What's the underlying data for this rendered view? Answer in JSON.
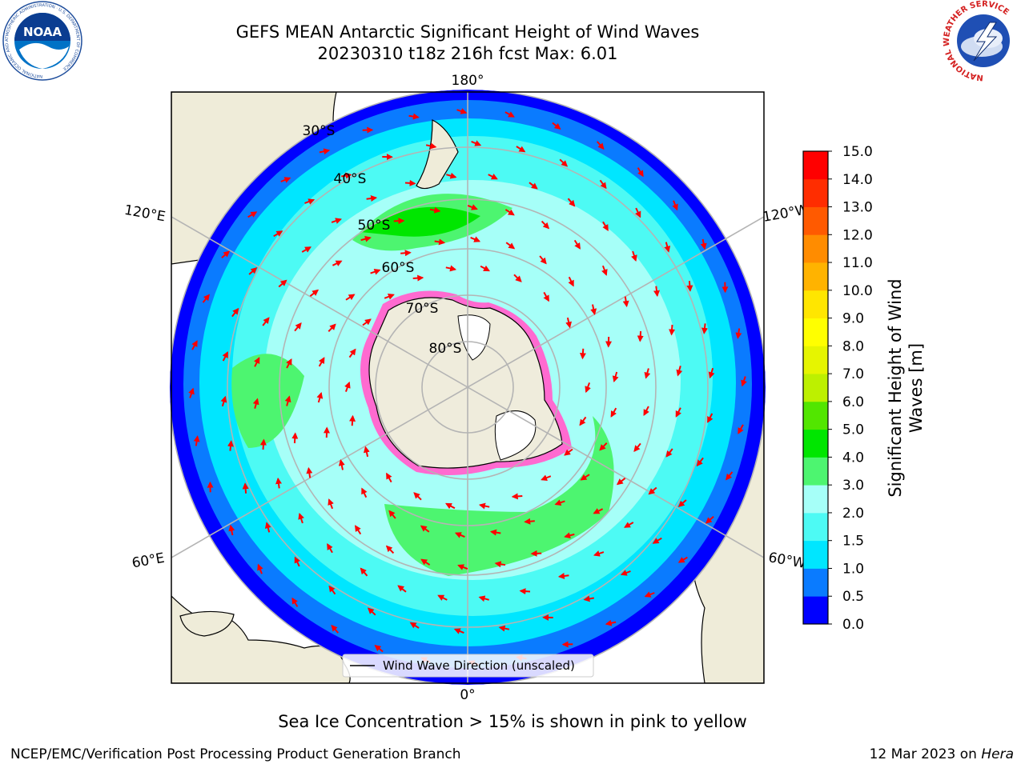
{
  "header": {
    "title_line1": "GEFS MEAN Antarctic Significant Height of Wind Waves",
    "title_line2": "20230310 t18z 216h fcst   Max: 6.01"
  },
  "logos": {
    "noaa": {
      "icon": "noaa-logo",
      "text": "NOAA",
      "ring_text": "NATIONAL OCEANIC AND ATMOSPHERIC ADMINISTRATION · U.S. DEPARTMENT OF COMMERCE"
    },
    "nws": {
      "icon": "nws-logo",
      "ring_text": "NATIONAL WEATHER SERVICE"
    }
  },
  "map": {
    "projection": "south-polar-stereographic",
    "longitude_labels": {
      "top": "180°",
      "bottom": "0°",
      "upper_left": "120°E",
      "upper_right": "120°W",
      "lower_left": "60°E",
      "lower_right": "60°W"
    },
    "latitude_labels": [
      "30°S",
      "40°S",
      "50°S",
      "60°S",
      "70°S",
      "80°S"
    ],
    "legend_label": "Wind Wave Direction (unscaled)"
  },
  "colorbar": {
    "label": "Significant Height of Wind Waves [m]",
    "label_line1": "Significant Height of Wind",
    "label_line2": "Waves [m]",
    "ticks": [
      "0.0",
      "0.5",
      "1.0",
      "1.5",
      "2.0",
      "3.0",
      "4.0",
      "5.0",
      "6.0",
      "7.0",
      "8.0",
      "9.0",
      "10.0",
      "11.0",
      "12.0",
      "13.0",
      "14.0",
      "15.0"
    ],
    "colors": [
      "#0000ff",
      "#0a7bff",
      "#00e6ff",
      "#4dfaf4",
      "#a6fff8",
      "#4df570",
      "#00e600",
      "#52e600",
      "#bdf000",
      "#e6f500",
      "#ffff00",
      "#ffe600",
      "#ffb300",
      "#ff8c00",
      "#ff5a00",
      "#ff2d00",
      "#ff0000"
    ]
  },
  "colors": {
    "land": "#efecd9",
    "antarctica": "#efecdc",
    "arrow": "#ff0000",
    "grid": "#b4b4b4",
    "sea_ice_pink": "#ff6ad0",
    "sea_ice_magenta": "#e01ee0"
  },
  "footer": {
    "note": "Sea Ice Concentration > 15% is shown in pink to yellow",
    "left": "NCEP/EMC/Verification Post Processing Product Generation Branch",
    "right_prefix": "12 Mar 2023 on ",
    "right_host": "Hera"
  }
}
